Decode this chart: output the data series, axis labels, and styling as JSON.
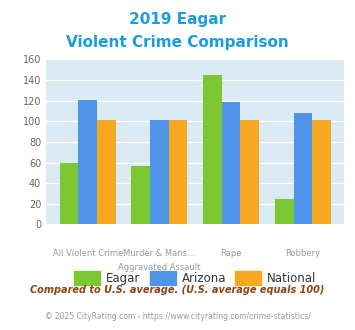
{
  "title_line1": "2019 Eagar",
  "title_line2": "Violent Crime Comparison",
  "title_color": "#1a9de0",
  "eagar": [
    60,
    57,
    145,
    25
  ],
  "arizona": [
    121,
    101,
    119,
    108
  ],
  "national": [
    101,
    101,
    101,
    101
  ],
  "eagar_color": "#7dc832",
  "arizona_color": "#4f94e8",
  "national_color": "#f5a820",
  "ylim": [
    0,
    160
  ],
  "yticks": [
    0,
    20,
    40,
    60,
    80,
    100,
    120,
    140,
    160
  ],
  "bg_color": "#daeaf2",
  "legend_labels": [
    "Eagar",
    "Arizona",
    "National"
  ],
  "top_labels": [
    "",
    "Murder & Mans...",
    "",
    ""
  ],
  "bot_labels": [
    "All Violent Crime",
    "Aggravated Assault",
    "Rape",
    "Robbery"
  ],
  "footnote1": "Compared to U.S. average. (U.S. average equals 100)",
  "footnote2": "© 2025 CityRating.com - https://www.cityrating.com/crime-statistics/",
  "footnote1_color": "#8b4513",
  "footnote2_color": "#9999aa"
}
